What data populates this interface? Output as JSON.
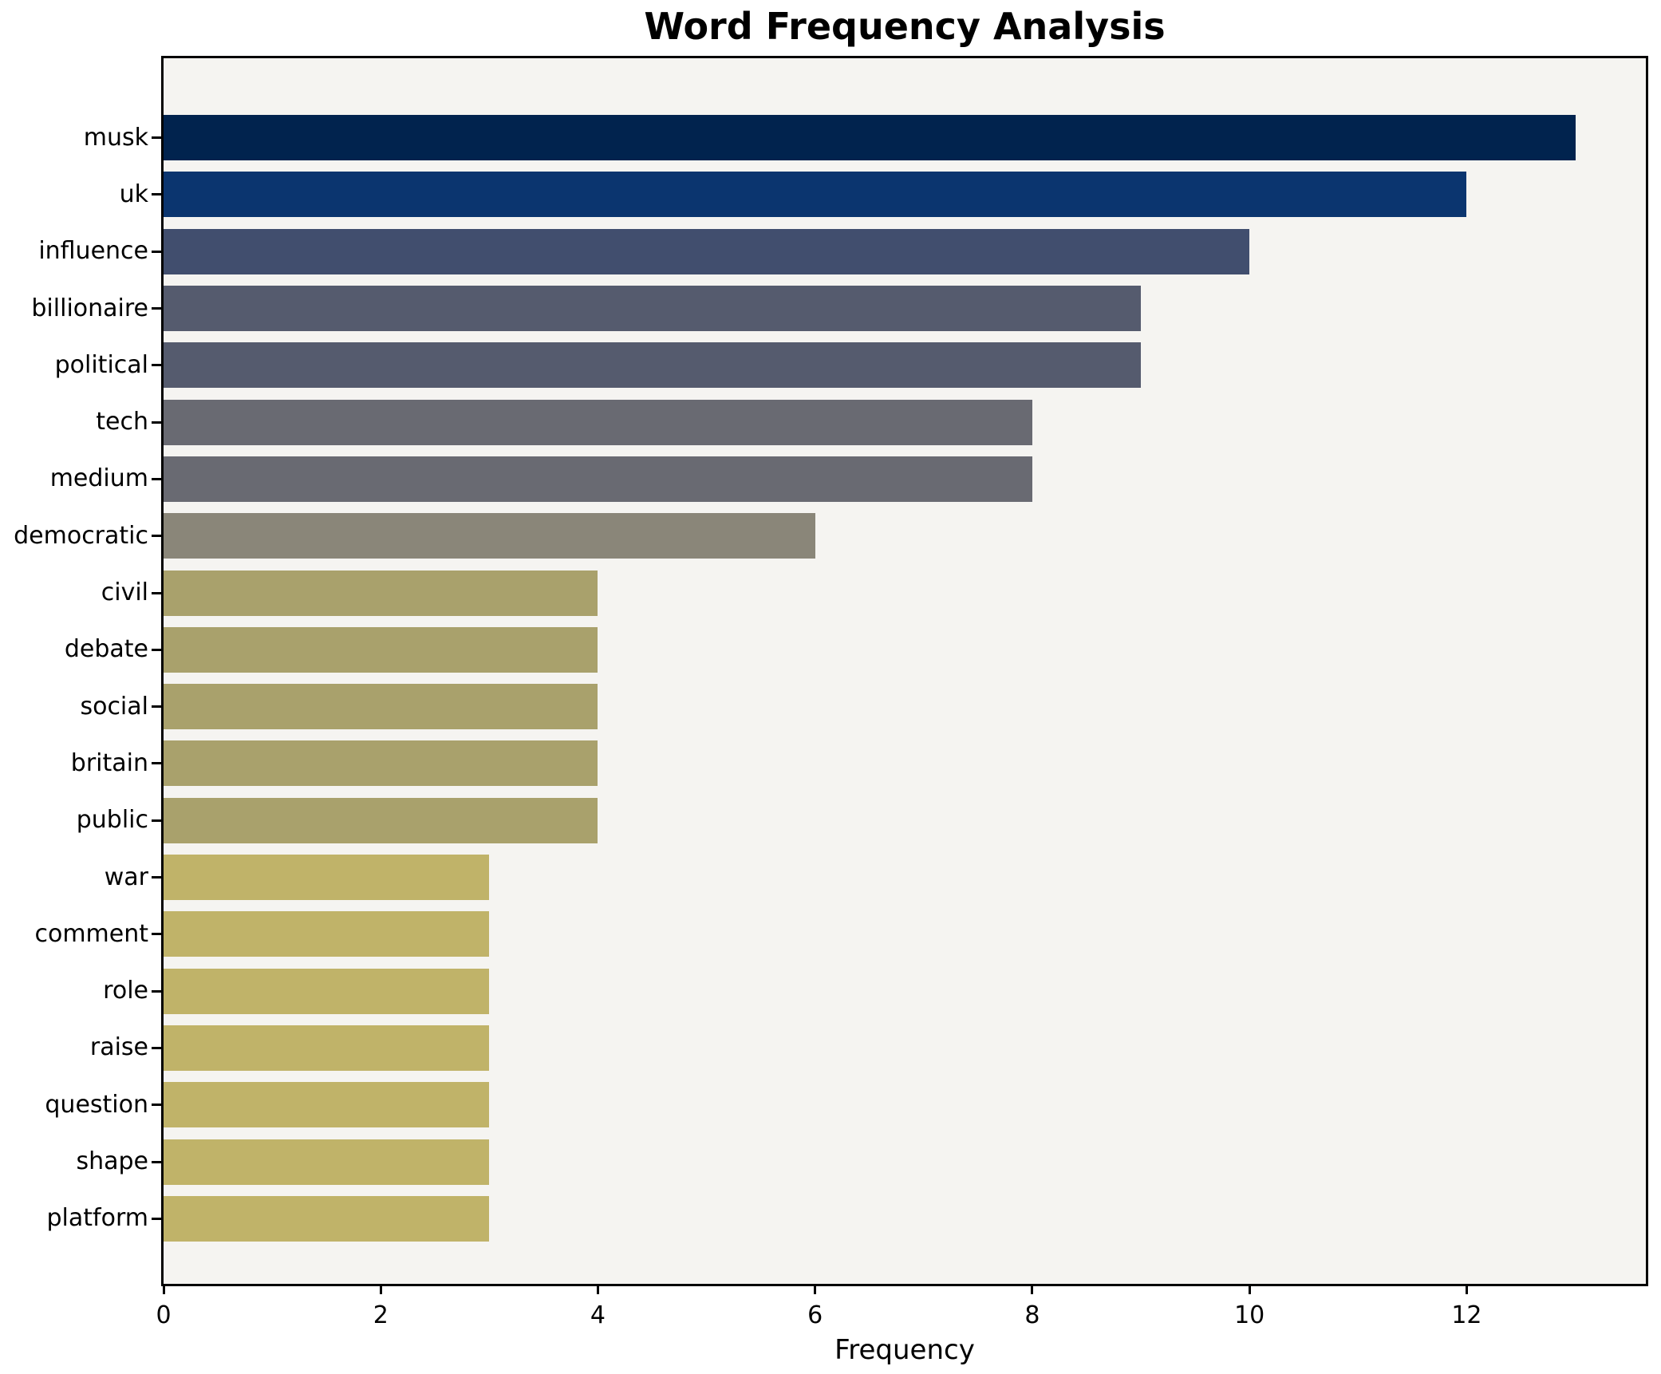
{
  "chart_data": {
    "type": "bar",
    "orientation": "horizontal",
    "title": "Word Frequency Analysis",
    "xlabel": "Frequency",
    "ylabel": "",
    "categories": [
      "musk",
      "uk",
      "influence",
      "billionaire",
      "political",
      "tech",
      "medium",
      "democratic",
      "civil",
      "debate",
      "social",
      "britain",
      "public",
      "war",
      "comment",
      "role",
      "raise",
      "question",
      "shape",
      "platform"
    ],
    "values": [
      13,
      12,
      10,
      9,
      9,
      8,
      8,
      6,
      4,
      4,
      4,
      4,
      4,
      3,
      3,
      3,
      3,
      3,
      3,
      3
    ],
    "bar_colors": [
      "#01234e",
      "#0b356f",
      "#414e6e",
      "#555b6e",
      "#555b6e",
      "#696a72",
      "#696a72",
      "#8a8679",
      "#a9a16c",
      "#a9a16c",
      "#a9a16c",
      "#a9a16c",
      "#a9a16c",
      "#c0b369",
      "#c0b369",
      "#c0b369",
      "#c0b369",
      "#c0b369",
      "#c0b369",
      "#c0b369"
    ],
    "xlim": [
      0,
      13.65
    ],
    "xticks": [
      0,
      2,
      4,
      6,
      8,
      10,
      12
    ],
    "grid": false,
    "legend_position": "none",
    "plot_background": "#f5f4f1",
    "figure_background": "#ffffff",
    "axis_color": "#000000"
  }
}
